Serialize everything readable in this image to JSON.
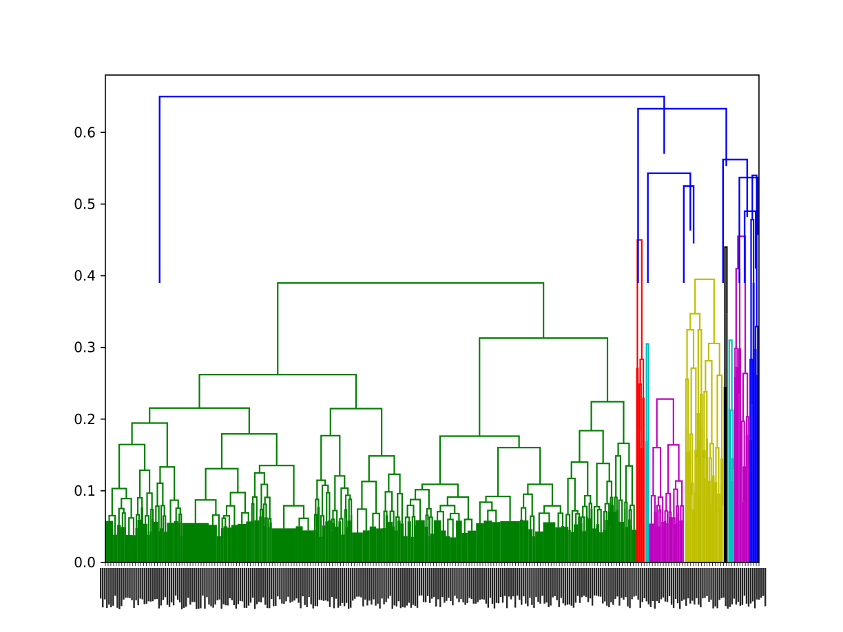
{
  "chart_data": {
    "type": "dendrogram",
    "title": "",
    "xlabel": "",
    "ylabel": "",
    "ylim": [
      0.0,
      0.68
    ],
    "yticks": [
      0.0,
      0.1,
      0.2,
      0.3,
      0.4,
      0.5,
      0.6
    ],
    "ytick_labels": [
      "0.0",
      "0.1",
      "0.2",
      "0.3",
      "0.4",
      "0.5",
      "0.6"
    ],
    "grid": false,
    "legend": "none",
    "leaf_count_note": "leaf labels along x-axis are overlapped and illegible",
    "clusters": [
      {
        "name": "green",
        "color": "#008000",
        "x_range": [
          0.0,
          0.812
        ],
        "merge_height": 0.39
      },
      {
        "name": "red",
        "color": "#ff0000",
        "x_range": [
          0.812,
          0.825
        ],
        "merge_height": 0.45
      },
      {
        "name": "cyan-a",
        "color": "#00bfbf",
        "x_range": [
          0.826,
          0.832
        ],
        "merge_height": 0.305
      },
      {
        "name": "magenta-a",
        "color": "#bf00bf",
        "x_range": [
          0.832,
          0.885
        ],
        "merge_height": 0.228
      },
      {
        "name": "yellow",
        "color": "#bfbf00",
        "x_range": [
          0.887,
          0.945
        ],
        "merge_height": 0.395
      },
      {
        "name": "black",
        "color": "#000000",
        "x_range": [
          0.946,
          0.952
        ],
        "merge_height": 0.44
      },
      {
        "name": "cyan-b",
        "color": "#00bfbf",
        "x_range": [
          0.953,
          0.962
        ],
        "merge_height": 0.31
      },
      {
        "name": "magenta-b",
        "color": "#bf00bf",
        "x_range": [
          0.962,
          0.985
        ],
        "merge_height": 0.455
      },
      {
        "name": "blue-leaves",
        "color": "#0000ff",
        "x_range": [
          0.985,
          1.0
        ],
        "merge_height": 0.54
      }
    ],
    "top_links": [
      {
        "x_left": 0.083,
        "x_right": 0.855,
        "height": 0.65
      },
      {
        "x_left": 0.815,
        "x_right": 0.95,
        "height": 0.633
      },
      {
        "x_left": 0.83,
        "x_right": 0.895,
        "height": 0.543
      },
      {
        "x_left": 0.885,
        "x_right": 0.9,
        "height": 0.525
      },
      {
        "x_left": 0.945,
        "x_right": 0.982,
        "height": 0.562
      },
      {
        "x_left": 0.97,
        "x_right": 0.998,
        "height": 0.537
      },
      {
        "x_left": 0.978,
        "x_right": 0.995,
        "height": 0.49
      }
    ],
    "colors": {
      "above_threshold": "#0000ff",
      "axis": "#000000"
    }
  }
}
